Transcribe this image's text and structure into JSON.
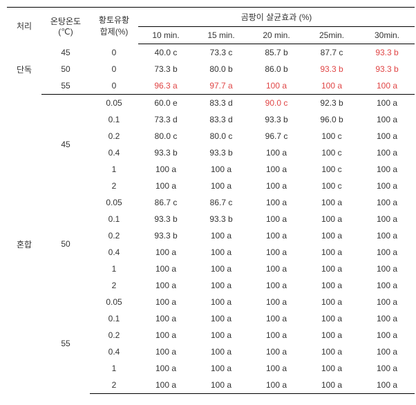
{
  "headers": {
    "treatment": "처리",
    "temp": "온탕온도\n(℃)",
    "agent": "황토유황\n합제(%)",
    "effect_title": "곰팡이 살균효과 (%)",
    "times": [
      "10 min.",
      "15 min.",
      "20 min.",
      "25min.",
      "30min."
    ]
  },
  "section1_label": "단독",
  "section2_label": "혼합",
  "rows": [
    {
      "section": 1,
      "temp": "45",
      "agent": "0",
      "v": [
        "40.0 c",
        "73.3 c",
        "85.7 b",
        "87.7 c",
        "93.3 b"
      ],
      "red": [
        false,
        false,
        false,
        false,
        true
      ],
      "sectionEnd": false
    },
    {
      "section": 1,
      "temp": "50",
      "agent": "0",
      "v": [
        "73.3 b",
        "80.0 b",
        "86.0 b",
        "93.3 b",
        "93.3 b"
      ],
      "red": [
        false,
        false,
        false,
        true,
        true
      ],
      "sectionEnd": false
    },
    {
      "section": 1,
      "temp": "55",
      "agent": "0",
      "v": [
        "96.3 a",
        "97.7 a",
        "100 a",
        "100 a",
        "100 a"
      ],
      "red": [
        true,
        true,
        true,
        true,
        true
      ],
      "sectionEnd": true
    },
    {
      "section": 2,
      "temp": "45",
      "agent": "0.05",
      "v": [
        "60.0 e",
        "83.3 d",
        "90.0 c",
        "92.3 b",
        "100 a"
      ],
      "red": [
        false,
        false,
        true,
        false,
        false
      ],
      "sectionEnd": false
    },
    {
      "section": 2,
      "temp": "45",
      "agent": "0.1",
      "v": [
        "73.3 d",
        "83.3 d",
        "93.3 b",
        "96.0 b",
        "100 a"
      ],
      "red": [
        false,
        false,
        false,
        false,
        false
      ],
      "sectionEnd": false
    },
    {
      "section": 2,
      "temp": "45",
      "agent": "0.2",
      "v": [
        "80.0 c",
        "80.0 c",
        "96.7 c",
        "100 c",
        "100 a"
      ],
      "red": [
        false,
        false,
        false,
        false,
        false
      ],
      "sectionEnd": false
    },
    {
      "section": 2,
      "temp": "45",
      "agent": "0.4",
      "v": [
        "93.3 b",
        "93.3 b",
        "100 a",
        "100 c",
        "100 a"
      ],
      "red": [
        false,
        false,
        false,
        false,
        false
      ],
      "sectionEnd": false
    },
    {
      "section": 2,
      "temp": "45",
      "agent": "1",
      "v": [
        "100 a",
        "100 a",
        "100 a",
        "100 c",
        "100 a"
      ],
      "red": [
        false,
        false,
        false,
        false,
        false
      ],
      "sectionEnd": false
    },
    {
      "section": 2,
      "temp": "45",
      "agent": "2",
      "v": [
        "100 a",
        "100 a",
        "100 a",
        "100 c",
        "100 a"
      ],
      "red": [
        false,
        false,
        false,
        false,
        false
      ],
      "sectionEnd": false
    },
    {
      "section": 2,
      "temp": "50",
      "agent": "0.05",
      "v": [
        "86.7 c",
        "86.7 c",
        "100 a",
        "100 a",
        "100 a"
      ],
      "red": [
        false,
        false,
        false,
        false,
        false
      ],
      "sectionEnd": false
    },
    {
      "section": 2,
      "temp": "50",
      "agent": "0.1",
      "v": [
        "93.3 b",
        "93.3 b",
        "100 a",
        "100 a",
        "100 a"
      ],
      "red": [
        false,
        false,
        false,
        false,
        false
      ],
      "sectionEnd": false
    },
    {
      "section": 2,
      "temp": "50",
      "agent": "0.2",
      "v": [
        "93.3 b",
        "100 a",
        "100 a",
        "100 a",
        "100 a"
      ],
      "red": [
        false,
        false,
        false,
        false,
        false
      ],
      "sectionEnd": false
    },
    {
      "section": 2,
      "temp": "50",
      "agent": "0.4",
      "v": [
        "100 a",
        "100 a",
        "100 a",
        "100 a",
        "100 a"
      ],
      "red": [
        false,
        false,
        false,
        false,
        false
      ],
      "sectionEnd": false
    },
    {
      "section": 2,
      "temp": "50",
      "agent": "1",
      "v": [
        "100 a",
        "100 a",
        "100 a",
        "100 a",
        "100 a"
      ],
      "red": [
        false,
        false,
        false,
        false,
        false
      ],
      "sectionEnd": false
    },
    {
      "section": 2,
      "temp": "50",
      "agent": "2",
      "v": [
        "100 a",
        "100 a",
        "100 a",
        "100 a",
        "100 a"
      ],
      "red": [
        false,
        false,
        false,
        false,
        false
      ],
      "sectionEnd": false
    },
    {
      "section": 2,
      "temp": "55",
      "agent": "0.05",
      "v": [
        "100 a",
        "100 a",
        "100 a",
        "100 a",
        "100 a"
      ],
      "red": [
        false,
        false,
        false,
        false,
        false
      ],
      "sectionEnd": false
    },
    {
      "section": 2,
      "temp": "55",
      "agent": "0.1",
      "v": [
        "100 a",
        "100 a",
        "100 a",
        "100 a",
        "100 a"
      ],
      "red": [
        false,
        false,
        false,
        false,
        false
      ],
      "sectionEnd": false
    },
    {
      "section": 2,
      "temp": "55",
      "agent": "0.2",
      "v": [
        "100 a",
        "100 a",
        "100 a",
        "100 a",
        "100 a"
      ],
      "red": [
        false,
        false,
        false,
        false,
        false
      ],
      "sectionEnd": false
    },
    {
      "section": 2,
      "temp": "55",
      "agent": "0.4",
      "v": [
        "100 a",
        "100 a",
        "100 a",
        "100 a",
        "100 a"
      ],
      "red": [
        false,
        false,
        false,
        false,
        false
      ],
      "sectionEnd": false
    },
    {
      "section": 2,
      "temp": "55",
      "agent": "1",
      "v": [
        "100 a",
        "100 a",
        "100 a",
        "100 a",
        "100 a"
      ],
      "red": [
        false,
        false,
        false,
        false,
        false
      ],
      "sectionEnd": false
    },
    {
      "section": 2,
      "temp": "55",
      "agent": "2",
      "v": [
        "100 a",
        "100 a",
        "100 a",
        "100 a",
        "100 a"
      ],
      "red": [
        false,
        false,
        false,
        false,
        false
      ],
      "sectionEnd": true
    }
  ]
}
